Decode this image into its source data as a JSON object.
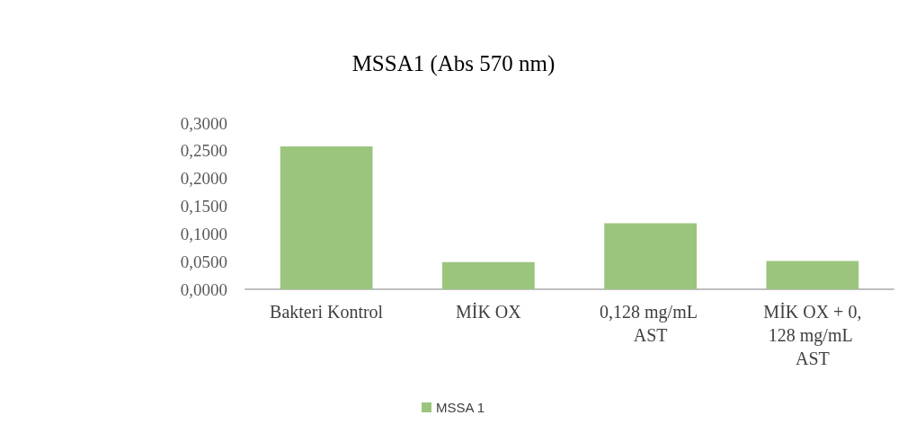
{
  "chart_data": {
    "type": "bar",
    "title": "MSSA1 (Abs 570 nm)",
    "categories": [
      "Bakteri Kontrol",
      "MİK OX",
      "0,128 mg/mL AST",
      "MİK OX + 0,128 mg/mL AST"
    ],
    "series": [
      {
        "name": "MSSA 1",
        "color": "#9bc57d",
        "values": [
          0.258,
          0.049,
          0.119,
          0.051
        ]
      }
    ],
    "ylim": [
      0,
      0.3
    ],
    "yticks": [
      {
        "value": 0,
        "label": "0,0000"
      },
      {
        "value": 0.05,
        "label": "0,0500"
      },
      {
        "value": 0.1,
        "label": "0,1000"
      },
      {
        "value": 0.15,
        "label": "0,1500"
      },
      {
        "value": 0.2,
        "label": "0,2000"
      },
      {
        "value": 0.25,
        "label": "0,2500"
      },
      {
        "value": 0.3,
        "label": "0,3000"
      }
    ],
    "grid": false,
    "legend": "bottom"
  }
}
